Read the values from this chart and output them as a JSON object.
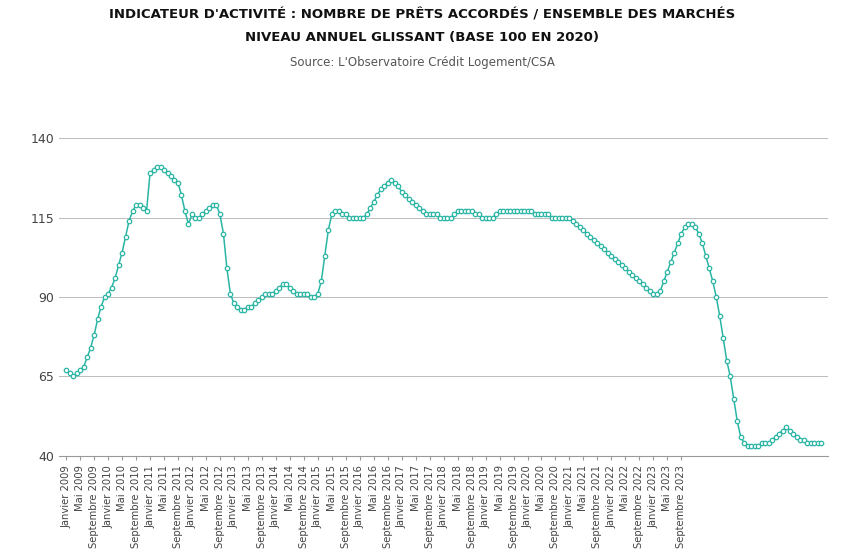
{
  "title_line1": "INDICATEUR D'ACTIVITÉ : NOMBRE DE PRÊTS ACCORDÉS / ENSEMBLE DES MARCHÉS",
  "title_line2": "NIVEAU ANNUEL GLISSANT (BASE 100 EN 2020)",
  "subtitle": "Source: L'Observatoire Crédit Logement/CSA",
  "line_color": "#2ab5a5",
  "marker_color": "#2ab5a5",
  "background_color": "#ffffff",
  "ylim": [
    40,
    145
  ],
  "yticks": [
    40,
    65,
    90,
    115,
    140
  ],
  "values": [
    67,
    66,
    65,
    66,
    67,
    68,
    71,
    74,
    78,
    83,
    87,
    90,
    91,
    93,
    96,
    100,
    104,
    109,
    114,
    117,
    119,
    119,
    118,
    117,
    129,
    130,
    131,
    131,
    130,
    129,
    128,
    127,
    126,
    122,
    117,
    113,
    116,
    115,
    115,
    116,
    117,
    118,
    119,
    119,
    116,
    110,
    99,
    91,
    88,
    87,
    86,
    86,
    87,
    87,
    88,
    89,
    90,
    91,
    91,
    91,
    92,
    93,
    94,
    94,
    93,
    92,
    91,
    91,
    91,
    91,
    90,
    90,
    91,
    95,
    103,
    111,
    116,
    117,
    117,
    116,
    116,
    115,
    115,
    115,
    115,
    115,
    116,
    118,
    120,
    122,
    124,
    125,
    126,
    127,
    126,
    125,
    123,
    122,
    121,
    120,
    119,
    118,
    117,
    116,
    116,
    116,
    116,
    115,
    115,
    115,
    115,
    116,
    117,
    117,
    117,
    117,
    117,
    116,
    116,
    115,
    115,
    115,
    115,
    116,
    117,
    117,
    117,
    117,
    117,
    117,
    117,
    117,
    117,
    117,
    116,
    116,
    116,
    116,
    116,
    115,
    115,
    115,
    115,
    115,
    115,
    114,
    113,
    112,
    111,
    110,
    109,
    108,
    107,
    106,
    105,
    104,
    103,
    102,
    101,
    100,
    99,
    98,
    97,
    96,
    95,
    94,
    93,
    92,
    91,
    91,
    92,
    95,
    98,
    101,
    104,
    107,
    110,
    112,
    113,
    113,
    112,
    110,
    107,
    103,
    99,
    95,
    90,
    84,
    77,
    70,
    65,
    58,
    51,
    46,
    44,
    43,
    43,
    43,
    43,
    44,
    44,
    44,
    45,
    46,
    47,
    48,
    49,
    48,
    47,
    46,
    45,
    45,
    44,
    44,
    44,
    44,
    44
  ],
  "x_tick_labels": [
    "Janvier 2009",
    "Mai 2009",
    "Septembre 2009",
    "Janvier 2010",
    "Mai 2010",
    "Septembre 2010",
    "Janvier 2011",
    "Mai 2011",
    "Septembre 2011",
    "Janvier 2012",
    "Mai 2012",
    "Septembre 2012",
    "Janvier 2013",
    "Mai 2013",
    "Septembre 2013",
    "Janvier 2014",
    "Mai 2014",
    "Septembre 2014",
    "Janvier 2015",
    "Mai 2015",
    "Septembre 2015",
    "Janvier 2016",
    "Mai 2016",
    "Septembre 2016",
    "Janvier 2017",
    "Mai 2017",
    "Septembre 2017",
    "Janvier 2018",
    "Mai 2018",
    "Septembre 2018",
    "Janvier 2019",
    "Mai 2019",
    "Septembre 2019",
    "Janvier 2020",
    "Mai 2020",
    "Septembre 2020",
    "Janvier 2021",
    "Mai 2021",
    "Septembre 2021",
    "Janvier 2022",
    "Mai 2022",
    "Septembre 2022",
    "Janvier 2023",
    "Mai 2023",
    "Septembre 2023"
  ],
  "x_tick_positions": [
    0,
    4,
    8,
    12,
    16,
    20,
    24,
    28,
    32,
    36,
    40,
    44,
    48,
    52,
    56,
    60,
    64,
    68,
    72,
    76,
    80,
    84,
    88,
    92,
    96,
    100,
    104,
    108,
    112,
    116,
    120,
    124,
    128,
    132,
    136,
    140,
    144,
    148,
    152,
    156,
    160,
    164,
    168,
    172,
    176
  ]
}
